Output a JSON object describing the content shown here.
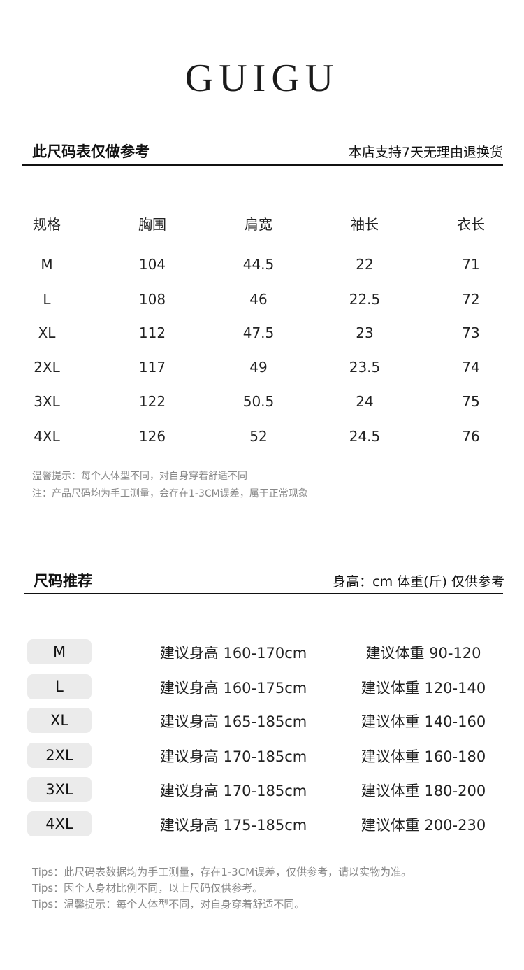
{
  "brand": "GUIGU",
  "size_chart": {
    "title": "此尺码表仅做参考",
    "right_note": "本店支持7天无理由退换货",
    "headers": [
      "规格",
      "胸围",
      "肩宽",
      "袖长",
      "衣长"
    ],
    "rows": [
      [
        "M",
        "104",
        "44.5",
        "22",
        "71"
      ],
      [
        "L",
        "108",
        "46",
        "22.5",
        "72"
      ],
      [
        "XL",
        "112",
        "47.5",
        "23",
        "73"
      ],
      [
        "2XL",
        "117",
        "49",
        "23.5",
        "74"
      ],
      [
        "3XL",
        "122",
        "50.5",
        "24",
        "75"
      ],
      [
        "4XL",
        "126",
        "52",
        "24.5",
        "76"
      ]
    ],
    "notes": [
      "温馨提示：每个人体型不同，对自身穿着舒适不同",
      "注：产品尺码均为手工测量，会存在1-3CM误差，属于正常现象"
    ]
  },
  "recommend": {
    "title": "尺码推荐",
    "right_note": "身高：cm 体重(斤) 仅供参考",
    "rows": [
      {
        "size": "M",
        "height": "建议身高 160-170cm",
        "weight": "建议体重 90-120"
      },
      {
        "size": "L",
        "height": "建议身高 160-175cm",
        "weight": "建议体重 120-140"
      },
      {
        "size": "XL",
        "height": "建议身高 165-185cm",
        "weight": "建议体重 140-160"
      },
      {
        "size": "2XL",
        "height": "建议身高 170-185cm",
        "weight": "建议体重 160-180"
      },
      {
        "size": "3XL",
        "height": "建议身高 170-185cm",
        "weight": "建议体重 180-200"
      },
      {
        "size": "4XL",
        "height": "建议身高 175-185cm",
        "weight": "建议体重 200-230"
      }
    ],
    "tips": [
      "Tips：此尺码表数据均为手工测量，存在1-3CM误差，仅供参考，请以实物为准。",
      "Tips：因个人身材比例不同，以上尺码仅供参考。",
      "Tips：温馨提示：每个人体型不同，对自身穿着舒适不同。"
    ]
  }
}
